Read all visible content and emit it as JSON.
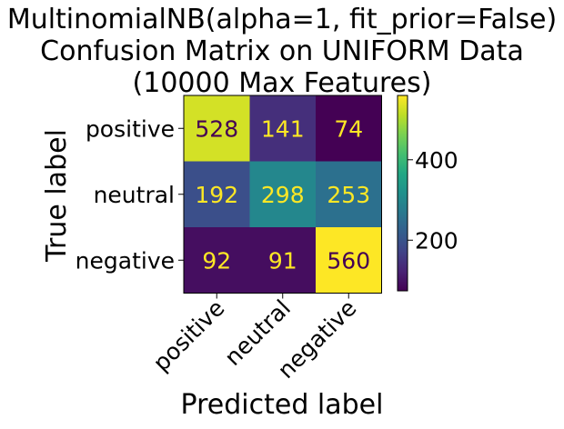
{
  "chart_data": {
    "type": "heatmap",
    "title": [
      "MultinomialNB(alpha=1, fit_prior=False)",
      "Confusion Matrix on UNIFORM Data",
      "(10000 Max Features)"
    ],
    "xlabel": "Predicted label",
    "ylabel": "True label",
    "x_categories": [
      "positive",
      "neutral",
      "negative"
    ],
    "y_categories": [
      "positive",
      "neutral",
      "negative"
    ],
    "values": [
      [
        528,
        141,
        74
      ],
      [
        192,
        298,
        253
      ],
      [
        92,
        91,
        560
      ]
    ],
    "colormap": "viridis",
    "colorbar": {
      "range": [
        74,
        560
      ],
      "ticks": [
        200,
        400
      ],
      "tick_labels": [
        "200",
        "400"
      ]
    },
    "text_colors": {
      "on_dark": "#fde725",
      "on_light": "#440154"
    }
  }
}
